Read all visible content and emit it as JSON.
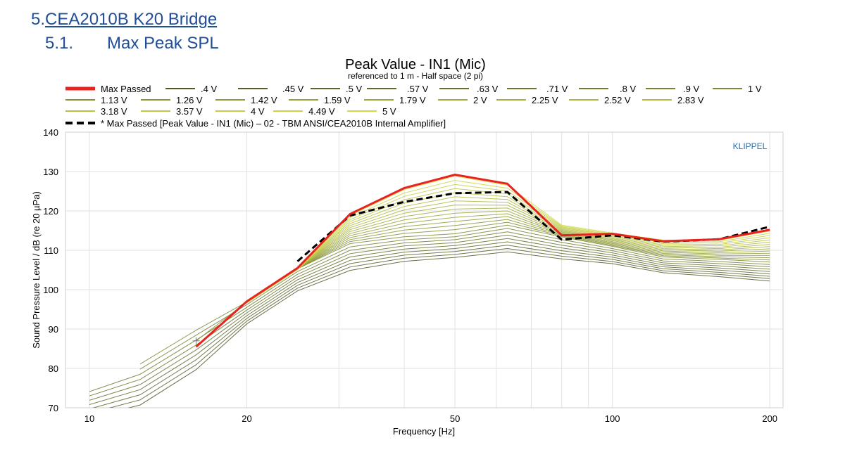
{
  "heading": {
    "section_number": "5.",
    "section_title": "CEA2010B K20 Bridge",
    "subsection_number": "5.1.",
    "subsection_title": "Max Peak SPL"
  },
  "chart_data": {
    "type": "line",
    "title": "Peak Value - IN1 (Mic)",
    "subtitle": "referenced to 1 m - Half space (2 pi)",
    "xlabel": "Frequency [Hz]",
    "ylabel": "Sound Pressure Level / dB (re 20 µPa)",
    "x_scale": "log",
    "xlim": [
      9,
      212
    ],
    "ylim": [
      70,
      140
    ],
    "x_ticks": [
      10,
      20,
      50,
      100,
      200
    ],
    "x_tick_labels": [
      "10",
      "20",
      "50",
      "100",
      "200"
    ],
    "y_ticks": [
      70,
      80,
      90,
      100,
      110,
      120,
      130,
      140
    ],
    "y_tick_labels": [
      "70",
      "80",
      "90",
      "100",
      "110",
      "120",
      "130",
      "140"
    ],
    "grid": true,
    "watermark": "KLIPPEL",
    "legend_position": "top",
    "voltage_levels": [
      ".4 V",
      ".45 V",
      ".5 V",
      ".57 V",
      ".63 V",
      ".71 V",
      ".8 V",
      ".9 V",
      "1 V",
      "1.13 V",
      "1.26 V",
      "1.42 V",
      "1.59 V",
      "1.79 V",
      "2 V",
      "2.25 V",
      "2.52 V",
      "2.83 V",
      "3.18 V",
      "3.57 V",
      "4 V",
      "4.49 V",
      "5 V"
    ],
    "voltage_colors": [
      "#4c5a28",
      "#525f29",
      "#58652b",
      "#5e6b2c",
      "#64712e",
      "#6a772f",
      "#707d30",
      "#768232",
      "#7c8833",
      "#828e35",
      "#889436",
      "#8e9a37",
      "#94a039",
      "#9aa53a",
      "#a0ab3c",
      "#a6b13d",
      "#acb73e",
      "#b2bd40",
      "#b8c241",
      "#bec843",
      "#c4ce44",
      "#cad446",
      "#d0da47"
    ],
    "voltage_freqs": [
      10,
      12.5,
      16,
      20,
      25,
      31.5,
      40,
      50,
      63,
      80,
      100,
      125,
      160,
      200
    ],
    "series": [
      {
        "name": "Max Passed",
        "color": "#e8231e",
        "style": "solid",
        "x": [
          16,
          20,
          25,
          31.5,
          40,
          50,
          63,
          80,
          100,
          125,
          160,
          200
        ],
        "y": [
          85.5,
          97,
          105.5,
          119.2,
          125.8,
          129.2,
          126.9,
          113.8,
          114.2,
          112.3,
          112.8,
          115.2
        ]
      },
      {
        "name": "* Max Passed [Peak Value - IN1 (Mic) – 02 - TBM ANSI/CEA2010B Internal Amplifier]",
        "color": "#000000",
        "style": "dashed",
        "x": [
          25,
          31.5,
          40,
          50,
          63,
          80,
          100,
          125,
          160,
          200
        ],
        "y": [
          107.2,
          118.8,
          122.3,
          124.5,
          124.8,
          112.7,
          113.8,
          112.2,
          112.8,
          116
        ]
      }
    ],
    "marker": {
      "x": 16,
      "y": 87,
      "symbol": "+"
    }
  }
}
